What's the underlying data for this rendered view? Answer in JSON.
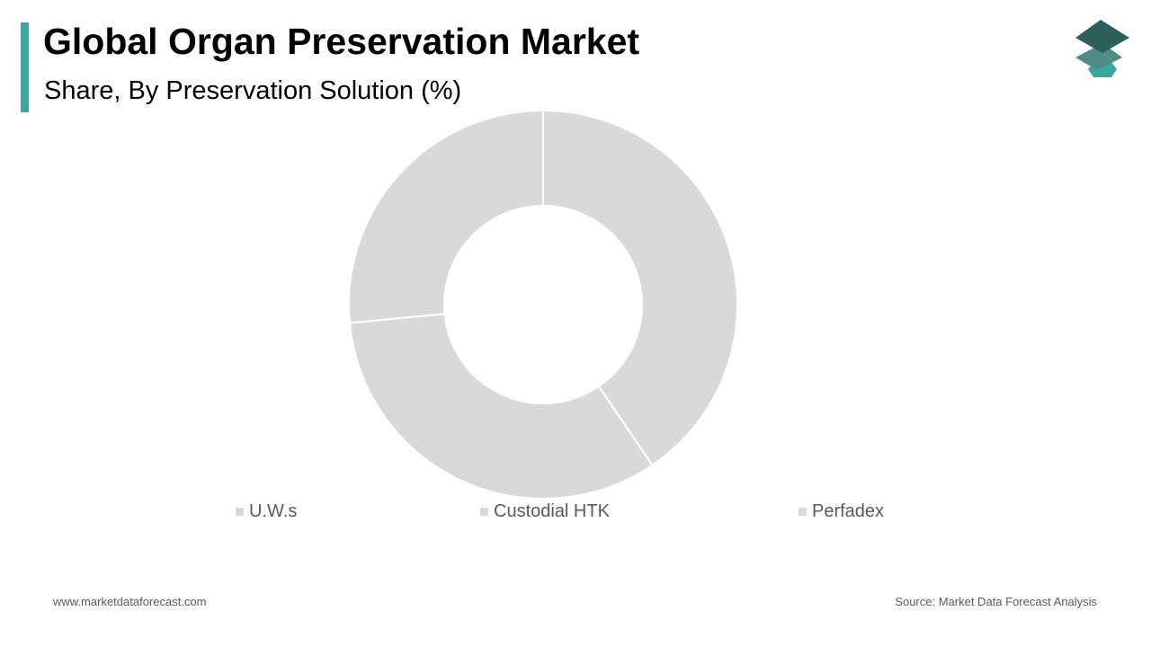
{
  "header": {
    "title": "Global Organ Preservation Market",
    "subtitle": "Share, By Preservation Solution (%)"
  },
  "footer": {
    "website": "www.marketdataforecast.com",
    "source": "Source: Market Data Forecast Analysis"
  },
  "colors": {
    "accent": "#3aa79f",
    "slice": "#d9d9d9",
    "separator": "#ffffff",
    "legend_text": "#595959",
    "logo_top": "#2e5e59",
    "logo_middle": "#4f8c86",
    "logo_bottom": "#3aa79f"
  },
  "logo": {
    "icon": "stacked-layers-icon"
  },
  "chart_data": {
    "type": "pie",
    "title": "Global Organ Preservation Market",
    "subtitle": "Share, By Preservation Solution (%)",
    "donut": true,
    "categories": [
      "U.W.s",
      "Custodial HTK",
      "Perfadex"
    ],
    "values": [
      40.5,
      33.0,
      26.5
    ],
    "slice_colors": [
      "#d9d9d9",
      "#d9d9d9",
      "#d9d9d9"
    ],
    "legend": "bottom",
    "data_labels": false
  }
}
